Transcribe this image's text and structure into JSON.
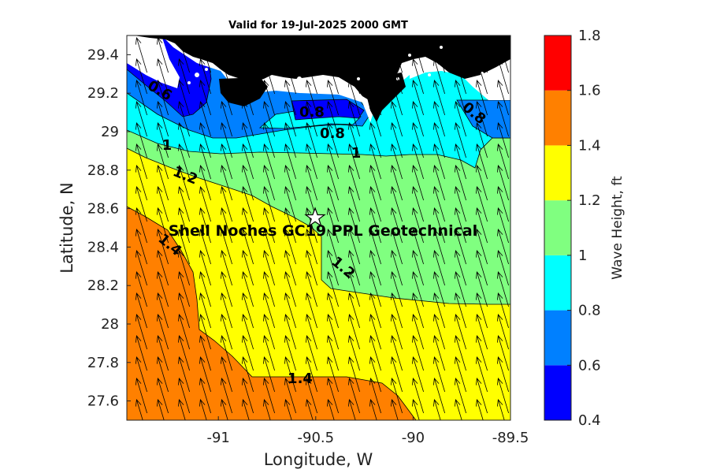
{
  "title": "Valid for 19-Jul-2025 2000 GMT",
  "map": {
    "xlabel": "Longitude, W",
    "ylabel": "Latitude, N",
    "xlim": [
      -91.47,
      -89.5
    ],
    "ylim": [
      27.5,
      29.5
    ],
    "xticks": [
      -91,
      -90.5,
      -90,
      -89.5
    ],
    "xtick_labels": [
      "-91",
      "-90.5",
      "-90",
      "-89.5"
    ],
    "yticks": [
      27.6,
      27.8,
      28,
      28.2,
      28.4,
      28.6,
      28.8,
      29,
      29.2,
      29.4
    ],
    "ytick_labels": [
      "27.6",
      "27.8",
      "28",
      "28.2",
      "28.4",
      "28.6",
      "28.8",
      "29",
      "29.2",
      "29.4"
    ],
    "site_label": "Shell Noches   GC19 PPL  Geotechnical",
    "site_marker": "star",
    "site_lon": -90.5,
    "site_lat": 28.55,
    "land_color": "#000000",
    "arrow_direction": "toward north-northwest",
    "contour_labels": [
      "0.6",
      "0.8",
      "0.8",
      "0.8",
      "1",
      "1",
      "1.2",
      "1.2",
      "1.4",
      "1.4"
    ]
  },
  "colorbar": {
    "label": "Wave Height, ft",
    "ticks": [
      "0.4",
      "0.6",
      "0.8",
      "1",
      "1.2",
      "1.4",
      "1.6",
      "1.8"
    ],
    "levels": [
      {
        "from": 0.4,
        "to": 0.6,
        "color": "#0000ff"
      },
      {
        "from": 0.6,
        "to": 0.8,
        "color": "#0080ff"
      },
      {
        "from": 0.8,
        "to": 1.0,
        "color": "#00ffff"
      },
      {
        "from": 1.0,
        "to": 1.2,
        "color": "#80ff80"
      },
      {
        "from": 1.2,
        "to": 1.4,
        "color": "#ffff00"
      },
      {
        "from": 1.4,
        "to": 1.6,
        "color": "#ff8000"
      },
      {
        "from": 1.6,
        "to": 1.8,
        "color": "#ff0000"
      }
    ]
  }
}
